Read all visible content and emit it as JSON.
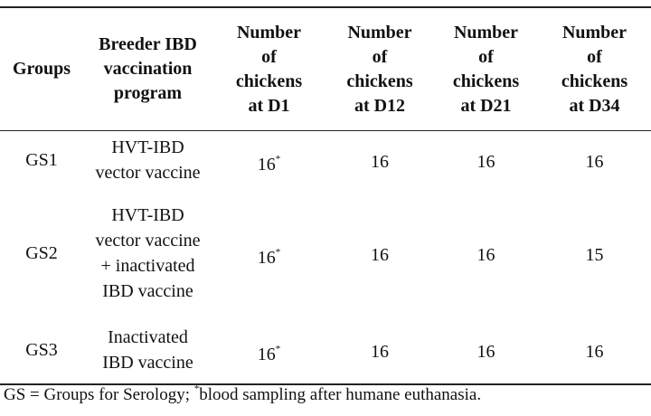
{
  "table": {
    "header": [
      [
        "Groups"
      ],
      [
        "Breeder IBD",
        "vaccination",
        "program"
      ],
      [
        "Number",
        "of",
        "chickens",
        "at D1"
      ],
      [
        "Number",
        "of",
        "chickens",
        "at D12"
      ],
      [
        "Number",
        "of",
        "chickens",
        "at D21"
      ],
      [
        "Number",
        "of",
        "chickens",
        "at D34"
      ]
    ],
    "rows": [
      [
        [
          "GS1"
        ],
        [
          "HVT-IBD",
          "vector vaccine"
        ],
        {
          "value": 16,
          "mark": "*"
        },
        16,
        16,
        16
      ],
      [
        [
          "GS2"
        ],
        [
          "HVT-IBD",
          "vector vaccine",
          "+ inactivated",
          "IBD vaccine"
        ],
        {
          "value": 16,
          "mark": "*"
        },
        16,
        16,
        15
      ],
      [
        [
          "GS3"
        ],
        [
          "Inactivated",
          "IBD vaccine"
        ],
        {
          "value": 16,
          "mark": "*"
        },
        16,
        16,
        16
      ]
    ]
  },
  "footnote": {
    "before": "GS = Groups for Serology; ",
    "mark": "*",
    "after": "blood sampling after humane euthanasia."
  }
}
